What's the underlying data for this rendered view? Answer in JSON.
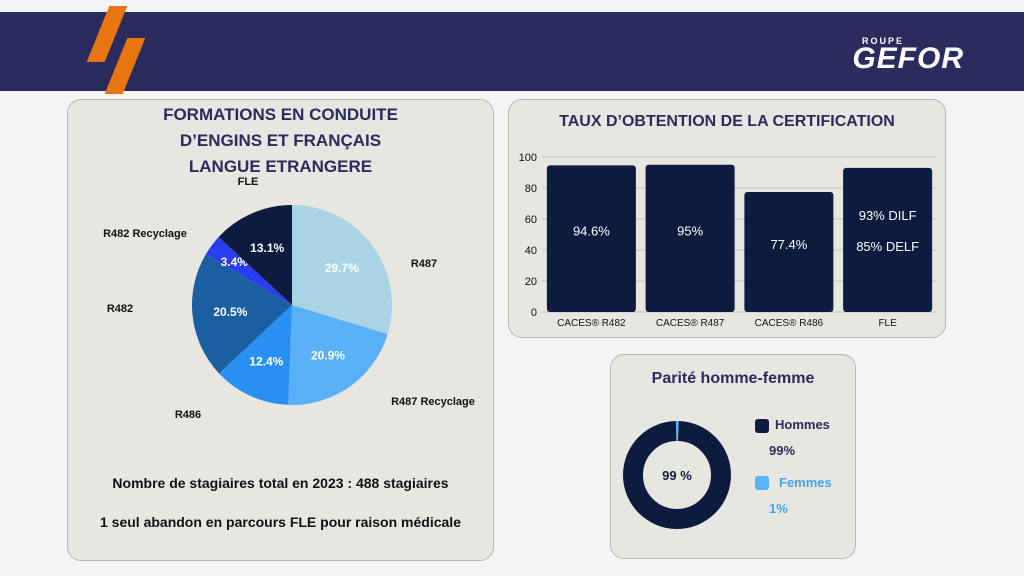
{
  "header": {
    "logo_top": "ROUPE",
    "logo_main": "GEFOR"
  },
  "colors": {
    "navy": "#2b2b5e",
    "accent_orange": "#e8750f",
    "bar_navy": "#0d1b3e",
    "women_blue": "#5ab4f5"
  },
  "training": {
    "title_lines": [
      "FORMATIONS EN CONDUITE",
      "D’ENGINS ET FRANÇAIS",
      "LANGUE ETRANGERE"
    ],
    "total_text": "Nombre de stagiaires total en 2023 : 488 stagiaires",
    "abandon_text": "1 seul abandon en parcours FLE pour raison médicale"
  },
  "certification": {
    "title": "TAUX D’OBTENTION DE LA CERTIFICATION"
  },
  "parity": {
    "title": "Parité  homme-femme",
    "center_label": "99 %",
    "legend": [
      {
        "name": "Hommes",
        "value": "99%",
        "color": "#0d1b3e",
        "text_color": "#2b2b5e"
      },
      {
        "name": "Femmes",
        "value": "1%",
        "color": "#5ab4f5",
        "text_color": "#3fa6ee"
      }
    ]
  },
  "chart_data": [
    {
      "type": "pie",
      "slices": [
        {
          "label": "R487",
          "display": "29.7%",
          "value": 29.7,
          "color": "#a9d4e4"
        },
        {
          "label": "R487 Recyclage",
          "display": "20.9%",
          "value": 20.9,
          "color": "#5ab0f7"
        },
        {
          "label": "R486",
          "display": "12.4%",
          "value": 12.4,
          "color": "#2a8ff2"
        },
        {
          "label": "R482",
          "display": "20.5%",
          "value": 20.5,
          "color": "#1b5fa0"
        },
        {
          "label": "R482 Recyclage",
          "display": "3.4%",
          "value": 3.4,
          "color": "#2a3cf0"
        },
        {
          "label": "FLE",
          "display": "13.1%",
          "value": 13.1,
          "color": "#0d1b3e"
        }
      ]
    },
    {
      "type": "bar",
      "categories": [
        "CACES® R482",
        "CACES® R487",
        "CACES® R486",
        "FLE"
      ],
      "values": [
        94.6,
        95,
        77.4,
        93
      ],
      "value_labels": [
        [
          "94.6%"
        ],
        [
          "95%"
        ],
        [
          "77.4%"
        ],
        [
          "93% DILF",
          "85% DELF"
        ]
      ],
      "ylim": [
        0,
        100
      ],
      "yticks": [
        0,
        20,
        40,
        60,
        80,
        100
      ],
      "grid": true,
      "color": "#0d1b3e"
    },
    {
      "type": "pie",
      "donut": true,
      "slices": [
        {
          "label": "Hommes",
          "value": 99,
          "color": "#0d1b3e"
        },
        {
          "label": "Femmes",
          "value": 1,
          "color": "#5ab4f5"
        }
      ]
    }
  ]
}
